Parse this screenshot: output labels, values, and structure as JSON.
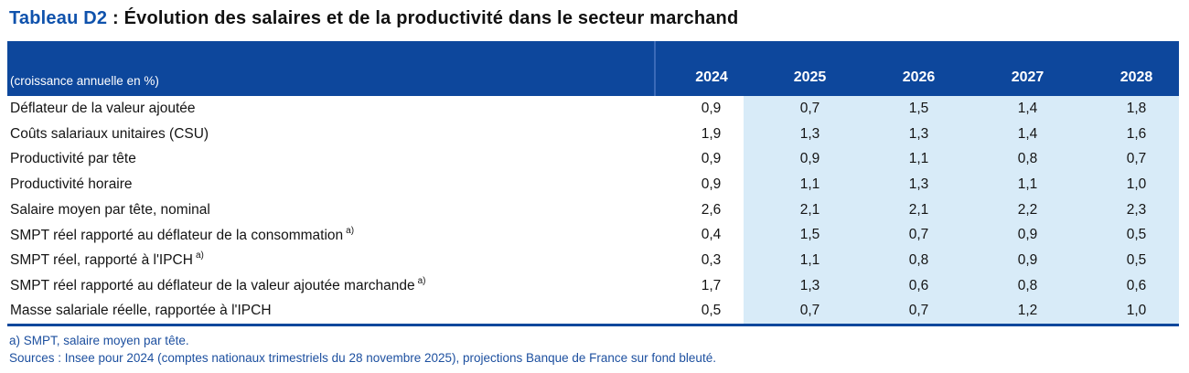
{
  "title": {
    "prefix": "Tableau D2",
    "separator": " : ",
    "text": "Évolution des salaires et de la productivité dans le secteur marchand"
  },
  "table": {
    "unit_label": "(croissance annuelle en %)",
    "years": [
      "2024",
      "2025",
      "2026",
      "2027",
      "2028"
    ],
    "projection_years": [
      "2025",
      "2026",
      "2027",
      "2028"
    ],
    "rows": [
      {
        "label": "Déflateur de la valeur ajoutée",
        "note": "",
        "values": [
          "0,9",
          "0,7",
          "1,5",
          "1,4",
          "1,8"
        ]
      },
      {
        "label": "Coûts salariaux unitaires (CSU)",
        "note": "",
        "values": [
          "1,9",
          "1,3",
          "1,3",
          "1,4",
          "1,6"
        ]
      },
      {
        "label": "Productivité par tête",
        "note": "",
        "values": [
          "0,9",
          "0,9",
          "1,1",
          "0,8",
          "0,7"
        ]
      },
      {
        "label": "Productivité horaire",
        "note": "",
        "values": [
          "0,9",
          "1,1",
          "1,3",
          "1,1",
          "1,0"
        ]
      },
      {
        "label": "Salaire moyen par tête, nominal",
        "note": "",
        "values": [
          "2,6",
          "2,1",
          "2,1",
          "2,2",
          "2,3"
        ]
      },
      {
        "label": "SMPT réel rapporté au déflateur de la consommation",
        "note": "a)",
        "values": [
          "0,4",
          "1,5",
          "0,7",
          "0,9",
          "0,5"
        ]
      },
      {
        "label": "SMPT réel, rapporté à l'IPCH",
        "note": "a)",
        "values": [
          "0,3",
          "1,1",
          "0,8",
          "0,9",
          "0,5"
        ]
      },
      {
        "label": "SMPT réel rapporté au déflateur de la valeur ajoutée marchande",
        "note": "a)",
        "values": [
          "1,7",
          "1,3",
          "0,6",
          "0,8",
          "0,6"
        ]
      },
      {
        "label": "Masse salariale réelle, rapportée à l'IPCH",
        "note": "",
        "values": [
          "0,5",
          "0,7",
          "0,7",
          "1,2",
          "1,0"
        ]
      }
    ]
  },
  "footnotes": {
    "note_a": "a)  SMPT, salaire moyen par tête.",
    "sources": "Sources : Insee pour 2024 (comptes nationaux trimestriels du 28 novembre 2025), projections Banque de France sur fond bleuté."
  },
  "colors": {
    "header_bg": "#0D479C",
    "projection_bg": "#D8EBF8",
    "title_accent": "#0F52AC",
    "footnote_text": "#1C4F9F",
    "table_border": "#0D479C",
    "header_divider": "#3A6AB8"
  }
}
